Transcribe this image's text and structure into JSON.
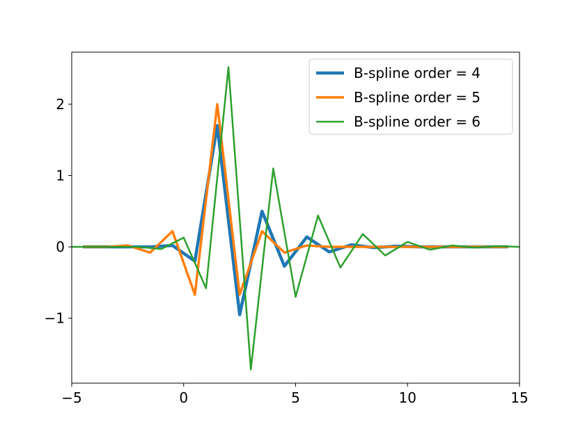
{
  "chart_data": {
    "type": "line",
    "xlim": [
      -5,
      15
    ],
    "ylim": [
      -1.91,
      2.73
    ],
    "xticks": [
      {
        "value": -5,
        "label": "−5"
      },
      0,
      5,
      10,
      15
    ],
    "yticks": [
      {
        "value": -1,
        "label": "−1"
      },
      0,
      1,
      2
    ],
    "legend": "upper right",
    "series": [
      {
        "name": "B-spline order = 4",
        "color": "#1f77b4",
        "linewidth": 4.5,
        "x": [
          -4.5,
          -3.5,
          -2.5,
          -1.5,
          -0.5,
          0.5,
          1.5,
          2.5,
          3.5,
          4.5,
          5.5,
          6.5,
          7.5,
          8.5,
          9.5,
          10.5,
          11.5,
          12.5,
          13.5,
          14.5
        ],
        "values": [
          0,
          0,
          0,
          0,
          0.02,
          -0.2,
          1.7,
          -0.95,
          0.5,
          -0.27,
          0.14,
          -0.07,
          0.03,
          -0.01,
          0.01,
          0,
          0,
          0,
          0,
          0
        ]
      },
      {
        "name": "B-spline order = 5",
        "color": "#ff7f0e",
        "linewidth": 3.5,
        "x": [
          -4.5,
          -3.5,
          -2.5,
          -1.5,
          -0.5,
          0.5,
          1.5,
          2.5,
          3.5,
          4.5,
          5.5,
          6.5,
          7.5,
          8.5,
          9.5,
          10.5,
          11.5,
          12.5,
          13.5,
          14.5
        ],
        "values": [
          0,
          0,
          0.02,
          -0.08,
          0.22,
          -0.67,
          2.0,
          -0.67,
          0.22,
          -0.08,
          0.02,
          0,
          0,
          0,
          0,
          0,
          0,
          0,
          0,
          0
        ]
      },
      {
        "name": "B-spline order = 6",
        "color": "#2ca02c",
        "linewidth": 2.5,
        "x": [
          -5,
          -4,
          -3,
          -2,
          -1,
          0,
          1,
          2,
          3,
          4,
          5,
          6,
          7,
          8,
          9,
          10,
          11,
          12,
          13,
          14,
          15
        ],
        "values": [
          0,
          0,
          0,
          0,
          -0.03,
          0.13,
          -0.58,
          2.52,
          -1.72,
          1.1,
          -0.7,
          0.44,
          -0.29,
          0.18,
          -0.12,
          0.07,
          -0.04,
          0.02,
          -0.01,
          0.01,
          0
        ]
      }
    ]
  }
}
